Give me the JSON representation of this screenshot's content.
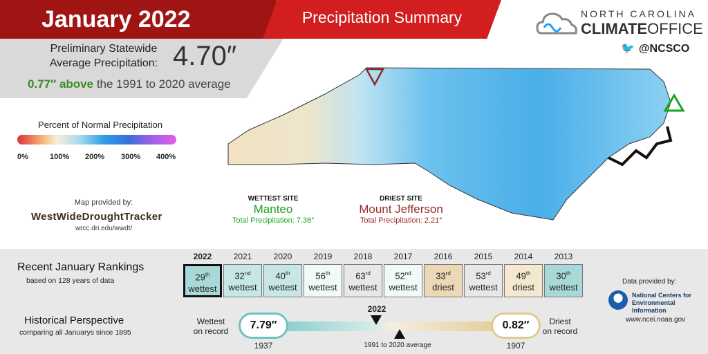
{
  "header": {
    "title": "January 2022",
    "subtitle": "Precipitation Summary"
  },
  "statewide": {
    "label_line1": "Preliminary Statewide",
    "label_line2": "Average Precipitation:",
    "value": "4.70″",
    "anomaly_value": "0.77″ above",
    "anomaly_rest": "the 1991 to 2020 average"
  },
  "logo": {
    "top": "NORTH CAROLINA",
    "climate": "CLIMATE",
    "office": "OFFICE",
    "twitter": "@NCSCO"
  },
  "legend": {
    "title": "Percent of Normal Precipitation",
    "ticks": [
      "0%",
      "100%",
      "200%",
      "300%",
      "400%"
    ]
  },
  "map_provider": {
    "label": "Map provided by:",
    "name": "WestWideDroughtTracker",
    "url": "wrcc.dri.edu/wwdt/"
  },
  "wettest": {
    "heading": "WETTEST SITE",
    "name": "Manteo",
    "total": "Total Precipitation: 7.36″"
  },
  "driest": {
    "heading": "DRIEST SITE",
    "name": "Mount Jefferson",
    "total": "Total Precipitation: 2.21″"
  },
  "rankings": {
    "title": "Recent January Rankings",
    "subtitle": "based on 128 years of data",
    "items": [
      {
        "year": "2022",
        "num": "29",
        "suf": "th",
        "kind": "wettest"
      },
      {
        "year": "2021",
        "num": "32",
        "suf": "nd",
        "kind": "wettest"
      },
      {
        "year": "2020",
        "num": "40",
        "suf": "th",
        "kind": "wettest"
      },
      {
        "year": "2019",
        "num": "56",
        "suf": "th",
        "kind": "wettest"
      },
      {
        "year": "2018",
        "num": "63",
        "suf": "rd",
        "kind": "wettest"
      },
      {
        "year": "2017",
        "num": "52",
        "suf": "nd",
        "kind": "wettest"
      },
      {
        "year": "2016",
        "num": "33",
        "suf": "rd",
        "kind": "driest"
      },
      {
        "year": "2015",
        "num": "53",
        "suf": "rd",
        "kind": "wettest"
      },
      {
        "year": "2014",
        "num": "49",
        "suf": "th",
        "kind": "driest"
      },
      {
        "year": "2013",
        "num": "30",
        "suf": "th",
        "kind": "wettest"
      }
    ]
  },
  "history": {
    "title": "Historical Perspective",
    "subtitle": "comparing all Januarys since 1895",
    "wettest_label1": "Wettest",
    "wettest_label2": "on record",
    "wettest_value": "7.79″",
    "wettest_year": "1937",
    "driest_label1": "Driest",
    "driest_label2": "on record",
    "driest_value": "0.82″",
    "driest_year": "1907",
    "current_year": "2022",
    "average_label": "1991 to 2020 average"
  },
  "data_provider": {
    "label": "Data provided by:",
    "name_line1": "National Centers for",
    "name_line2": "Environmental Information",
    "url": "www.ncei.noaa.gov"
  },
  "colors": {
    "title_red": "#a01414",
    "subtitle_red": "#d21e1e",
    "wettest_green": "#1aa31a",
    "driest_red": "#9a2a2a",
    "anomaly_green": "#3b8a2a"
  }
}
